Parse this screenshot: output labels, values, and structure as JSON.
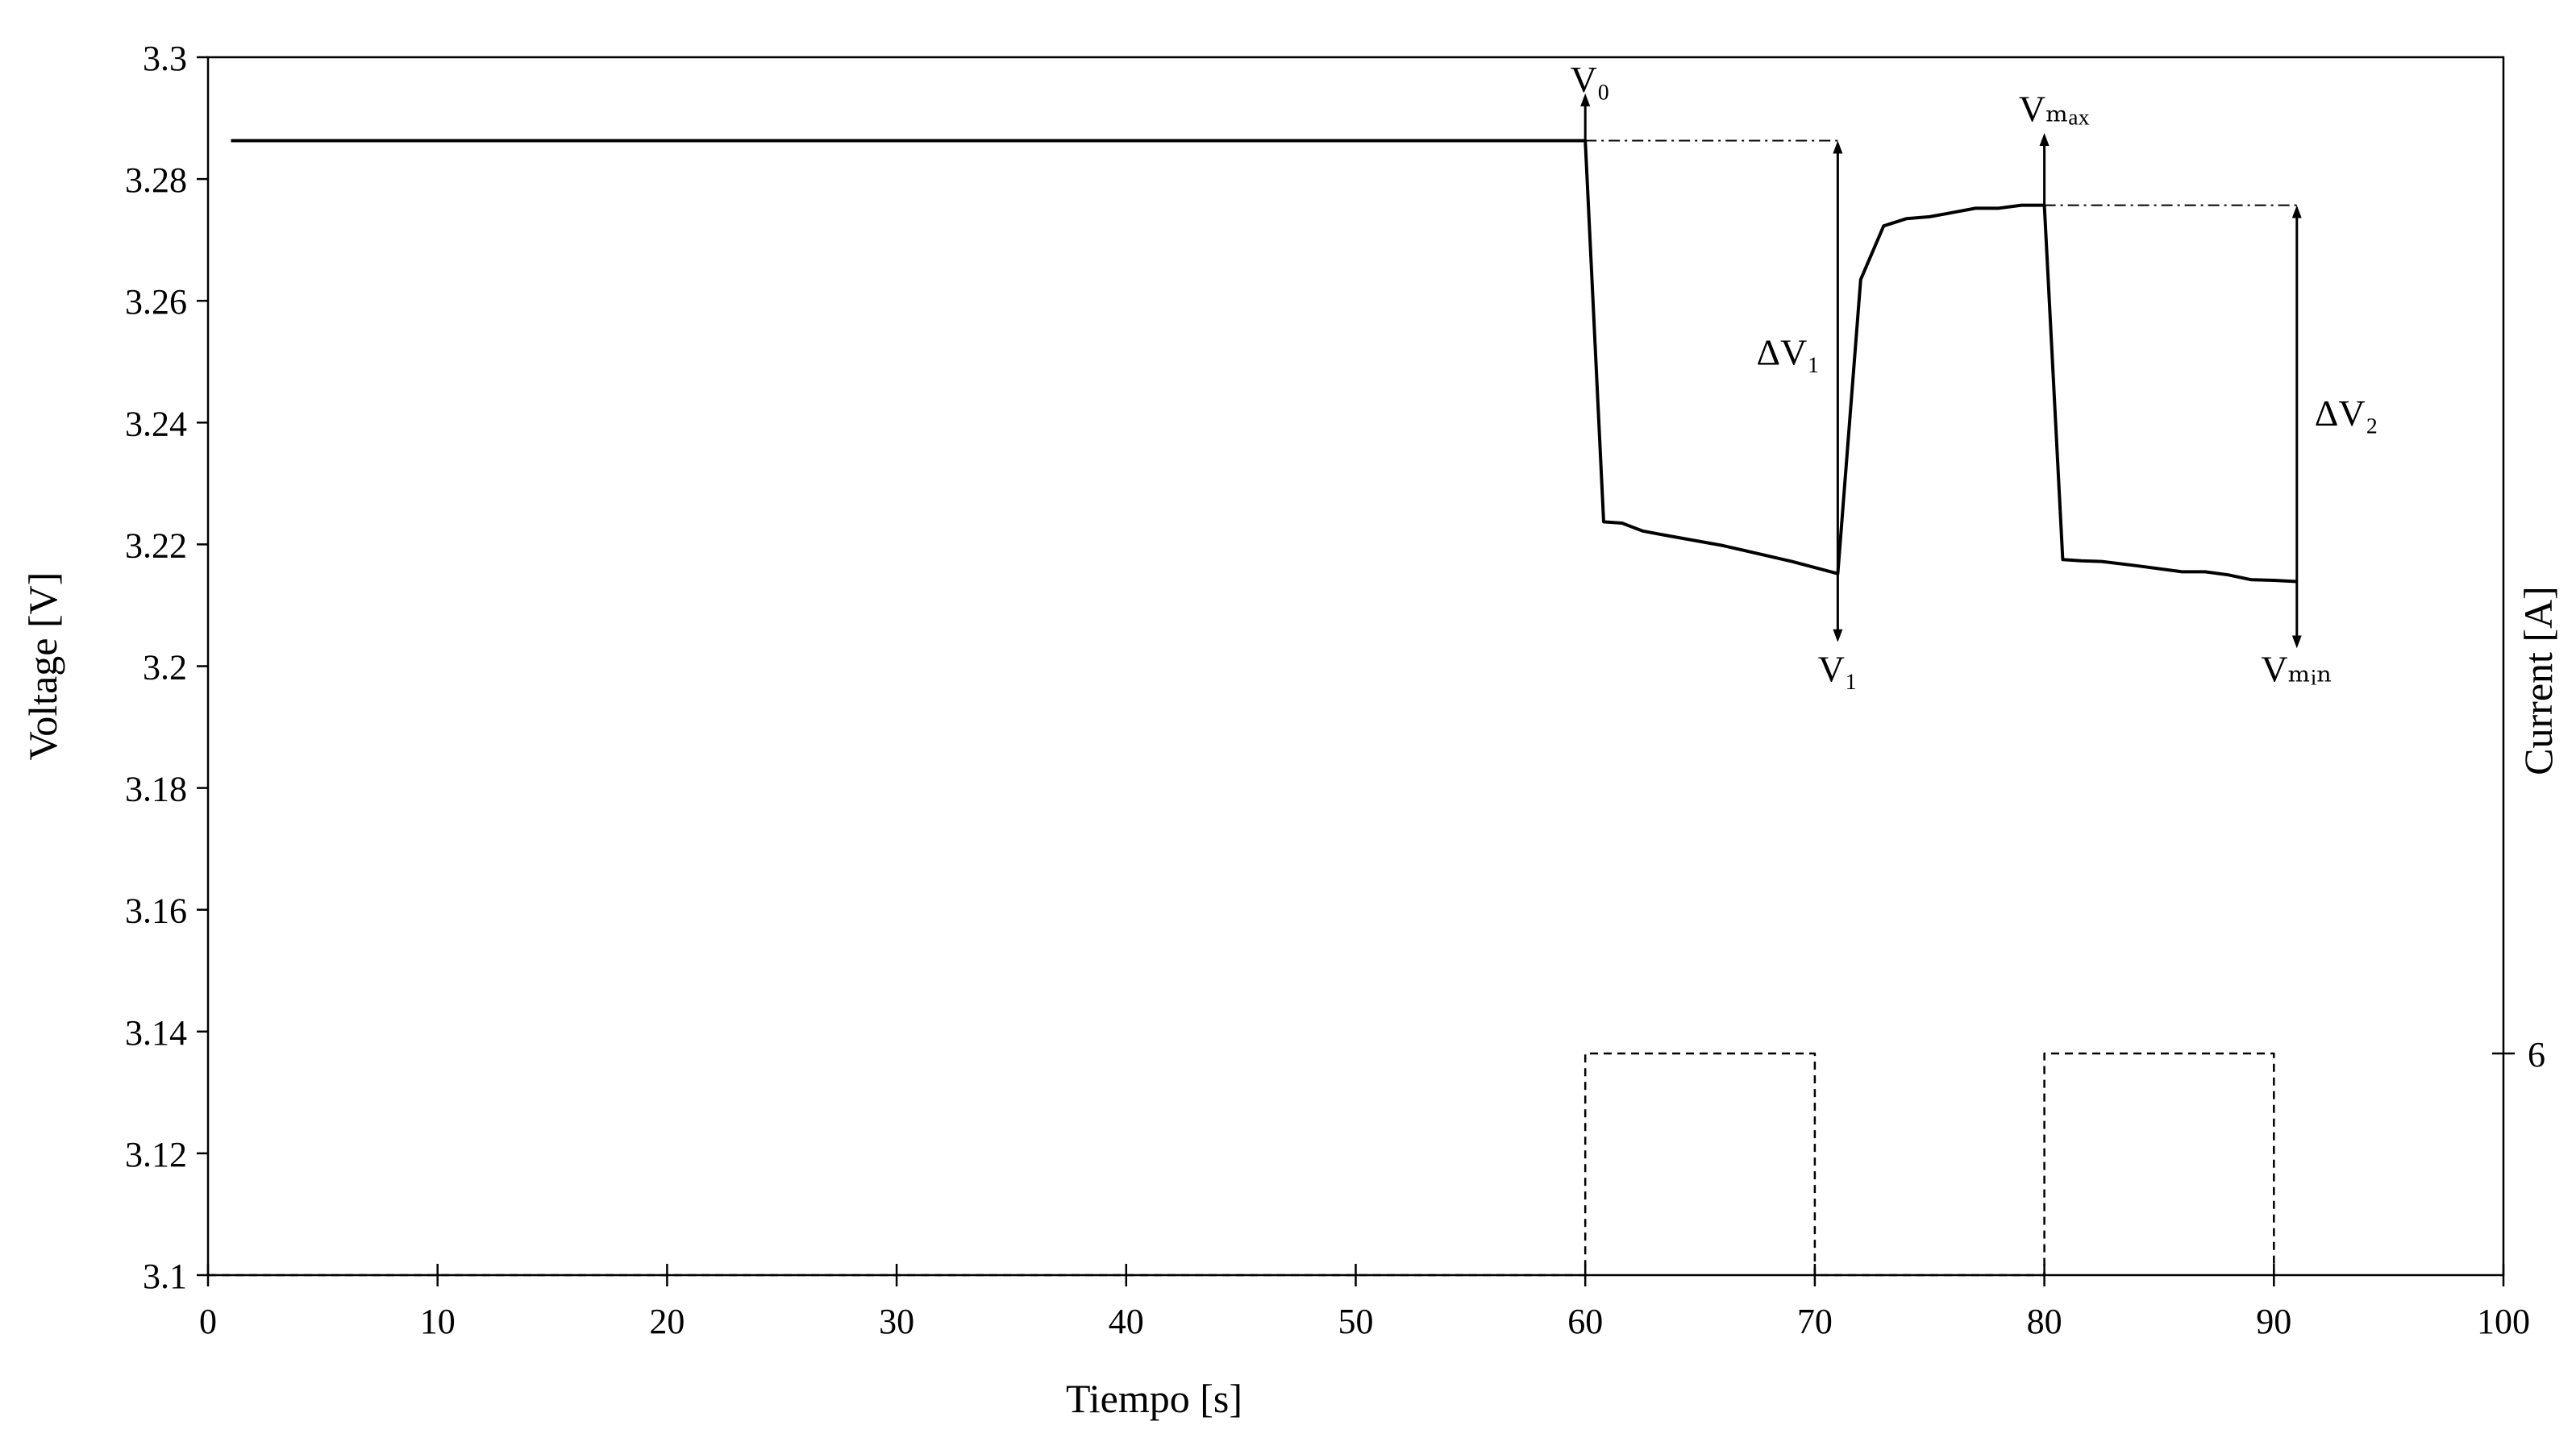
{
  "chart_data": {
    "type": "line",
    "xlabel": "Tiempo [s]",
    "ylabel": "Voltage [V]",
    "y2label": "Current [A]",
    "xlim": [
      0,
      100
    ],
    "ylim": [
      3.1,
      3.3
    ],
    "x_ticks": [
      0,
      10,
      20,
      30,
      40,
      50,
      60,
      70,
      80,
      90,
      100
    ],
    "y_ticks": [
      3.1,
      3.12,
      3.14,
      3.16,
      3.18,
      3.2,
      3.22,
      3.24,
      3.26,
      3.28,
      3.3
    ],
    "y_tick_labels": [
      "3.1",
      "3.12",
      "3.14",
      "3.16",
      "3.18",
      "3.2",
      "3.22",
      "3.24",
      "3.26",
      "3.28",
      "3.3"
    ],
    "y2_ticks": [
      6
    ],
    "y2_tick_labels": [
      "6"
    ],
    "series": [
      {
        "style": "solid",
        "axis": "left",
        "x": [
          1,
          60,
          60.8,
          61.6,
          62.5,
          63.5,
          66,
          69,
          71,
          72,
          73,
          74,
          75,
          76,
          77,
          78,
          79,
          80,
          80.8,
          81.6,
          82.5,
          84,
          86,
          87,
          88,
          89,
          90,
          91
        ],
        "y": [
          3.2863,
          3.2863,
          3.2237,
          3.2235,
          3.2222,
          3.2215,
          3.2198,
          3.2172,
          3.2152,
          3.2635,
          3.2723,
          3.2735,
          3.2738,
          3.2745,
          3.2752,
          3.2752,
          3.2757,
          3.2757,
          3.2175,
          3.2173,
          3.2172,
          3.2165,
          3.2155,
          3.2155,
          3.215,
          3.2142,
          3.2141,
          3.2139
        ]
      },
      {
        "style": "dashed",
        "axis": "right",
        "x": [
          0,
          60,
          60,
          70,
          70,
          80,
          80,
          90,
          90
        ],
        "y": [
          0,
          0,
          6,
          6,
          0,
          0,
          6,
          6,
          0
        ]
      }
    ],
    "annotations": [
      {
        "label": "V₀",
        "x": 60,
        "y": 3.2863
      },
      {
        "label": "ΔV₁",
        "x": 71
      },
      {
        "label": "V₁",
        "x": 71,
        "y": 3.2152
      },
      {
        "label": "Vₘₐₓ",
        "x": 80,
        "y": 3.2757
      },
      {
        "label": "ΔV₂",
        "x": 91
      },
      {
        "label": "Vₘᵢₙ",
        "x": 91,
        "y": 3.2139
      }
    ]
  },
  "colors": {
    "line": "#000000",
    "background": "#ffffff"
  }
}
